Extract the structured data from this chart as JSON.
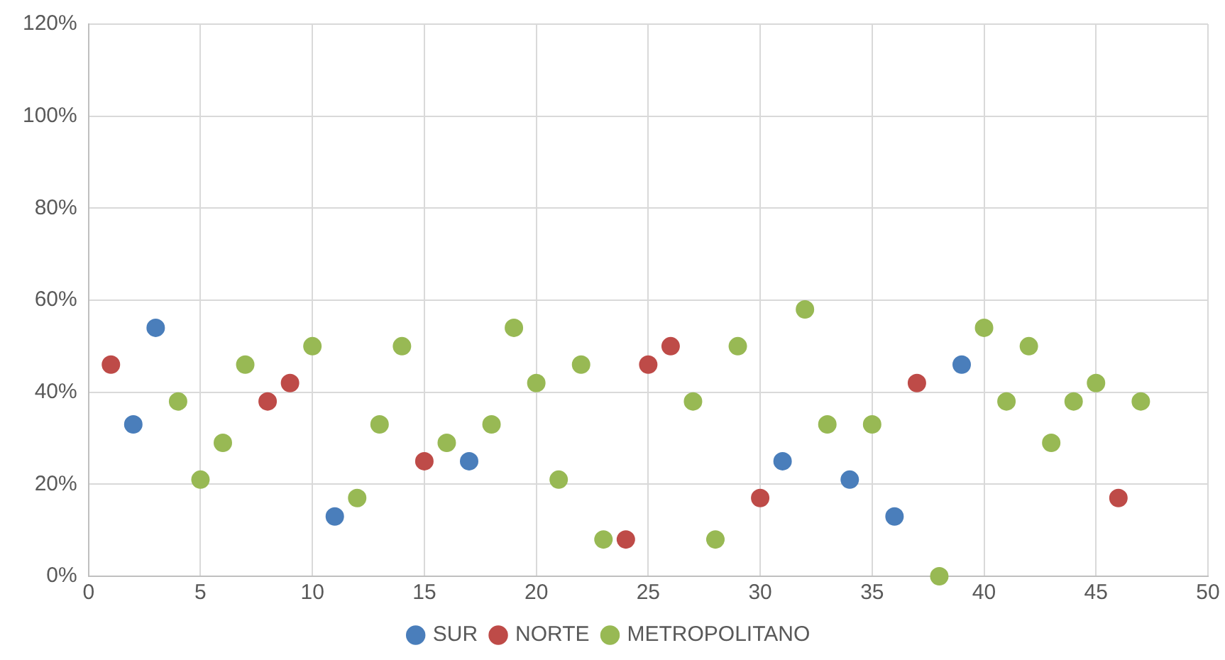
{
  "chart_data": {
    "type": "scatter",
    "series": [
      {
        "name": "SUR",
        "color": "#4a7ebb",
        "x": [
          2,
          3,
          11,
          17,
          31,
          34,
          36,
          39
        ],
        "values": [
          33,
          54,
          13,
          25,
          25,
          21,
          13,
          46
        ]
      },
      {
        "name": "NORTE",
        "color": "#be4b48",
        "x": [
          1,
          8,
          9,
          15,
          24,
          25,
          26,
          30,
          37,
          46
        ],
        "values": [
          46,
          38,
          42,
          25,
          8,
          46,
          50,
          17,
          42,
          17
        ]
      },
      {
        "name": "METROPOLITANO",
        "color": "#98b954",
        "x": [
          4,
          5,
          6,
          7,
          10,
          12,
          13,
          14,
          16,
          18,
          19,
          20,
          21,
          22,
          23,
          27,
          28,
          29,
          32,
          33,
          35,
          38,
          40,
          41,
          42,
          43,
          44,
          45,
          47
        ],
        "values": [
          38,
          21,
          29,
          46,
          50,
          17,
          33,
          50,
          29,
          33,
          54,
          42,
          21,
          46,
          8,
          38,
          8,
          50,
          58,
          33,
          33,
          0,
          54,
          38,
          50,
          29,
          38,
          42,
          38
        ]
      }
    ],
    "xlim": [
      0,
      50
    ],
    "xticks": [
      0,
      5,
      10,
      15,
      20,
      25,
      30,
      35,
      40,
      45,
      50
    ],
    "ylim": [
      0,
      120
    ],
    "yticks": [
      {
        "value": 0,
        "label": "0%"
      },
      {
        "value": 20,
        "label": "20%"
      },
      {
        "value": 40,
        "label": "40%"
      },
      {
        "value": 60,
        "label": "60%"
      },
      {
        "value": 80,
        "label": "80%"
      },
      {
        "value": 100,
        "label": "100%"
      },
      {
        "value": 120,
        "label": "120%"
      }
    ],
    "grid": true,
    "legend": "bottom",
    "marker": "circle"
  }
}
